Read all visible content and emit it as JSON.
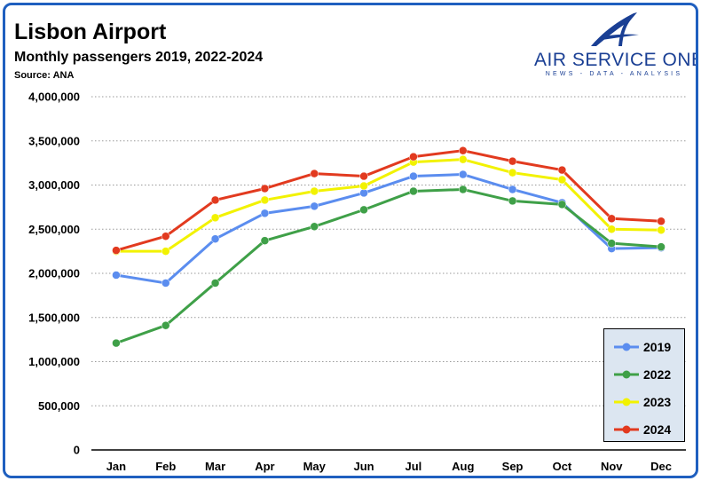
{
  "header": {
    "title": "Lisbon Airport",
    "subtitle": "Monthly passengers 2019, 2022-2024",
    "source": "Source: ANA"
  },
  "brand": {
    "name": "AIR SERVICE ONE",
    "tagline": "NEWS - DATA - ANALYSIS",
    "logo_icon": "stylized-a-plane-icon",
    "color": "#1a3f94"
  },
  "chart_data": {
    "type": "line",
    "title": "Lisbon Airport",
    "subtitle": "Monthly passengers 2019, 2022-2024",
    "xlabel": "",
    "ylabel": "",
    "ylim": [
      0,
      4000000
    ],
    "yticks": [
      0,
      500000,
      1000000,
      1500000,
      2000000,
      2500000,
      3000000,
      3500000,
      4000000
    ],
    "ytick_labels": [
      "0",
      "500,000",
      "1,000,000",
      "1,500,000",
      "2,000,000",
      "2,500,000",
      "3,000,000",
      "3,500,000",
      "4,000,000"
    ],
    "grid": "horizontal-dotted",
    "legend_position": "bottom-right",
    "categories": [
      "Jan",
      "Feb",
      "Mar",
      "Apr",
      "May",
      "Jun",
      "Jul",
      "Aug",
      "Sep",
      "Oct",
      "Nov",
      "Dec"
    ],
    "series": [
      {
        "name": "2019",
        "color": "#5b8def",
        "values": [
          1980000,
          1890000,
          2390000,
          2680000,
          2760000,
          2910000,
          3100000,
          3120000,
          2950000,
          2800000,
          2280000,
          2290000
        ]
      },
      {
        "name": "2022",
        "color": "#3fa048",
        "values": [
          1210000,
          1410000,
          1890000,
          2370000,
          2530000,
          2720000,
          2930000,
          2950000,
          2820000,
          2780000,
          2340000,
          2300000
        ]
      },
      {
        "name": "2023",
        "color": "#f2f200",
        "values": [
          2250000,
          2250000,
          2630000,
          2830000,
          2930000,
          2990000,
          3260000,
          3290000,
          3140000,
          3060000,
          2500000,
          2490000
        ]
      },
      {
        "name": "2024",
        "color": "#e23a1f",
        "values": [
          2260000,
          2420000,
          2830000,
          2960000,
          3130000,
          3100000,
          3320000,
          3390000,
          3270000,
          3170000,
          2620000,
          2590000
        ]
      }
    ]
  }
}
